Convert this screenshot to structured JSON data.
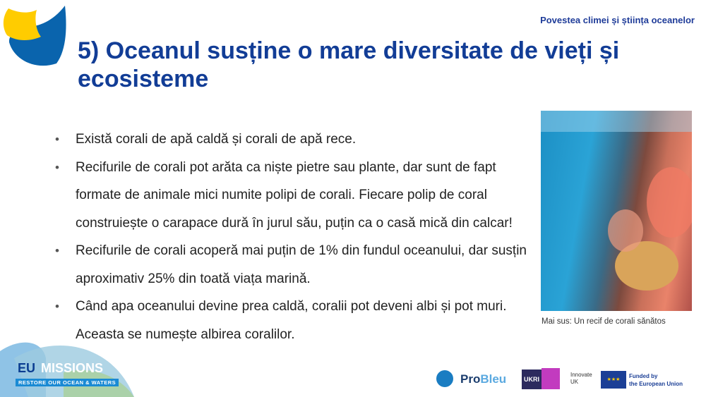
{
  "header": {
    "top_label": "Povestea climei și știința oceanelor",
    "title": "5) Oceanul susține o mare diversitate de vieți și ecosisteme"
  },
  "bullets": [
    "Există corali de apă caldă și corali de apă rece.",
    "Recifurile de corali pot arăta ca niște pietre sau plante, dar sunt de fapt formate de animale mici numite polipi de corali. Fiecare polip de coral construiește o carapace dură în jurul său, puțin ca o casă mică din calcar!",
    "Recifurile de corali acoperă mai puțin de 1% din fundul oceanului, dar susțin aproximativ 25% din toată viața marină.",
    "Când apa oceanului devine prea caldă, coralii pot deveni albi și pot muri. Aceasta se numește albirea coralilor."
  ],
  "image": {
    "caption": "Mai sus: Un recif de corali sănătos"
  },
  "footer": {
    "eu_missions": {
      "name_a": "EU",
      "name_b": "MISSIONS",
      "tagline": "RESTORE OUR OCEAN & WATERS"
    },
    "probleu": {
      "a": "Pro",
      "b": "Bleu"
    },
    "ukri": {
      "mark": "UKRI",
      "label1": "Innovate",
      "label2": "UK"
    },
    "eu": {
      "line1": "Funded by",
      "line2": "the European Union"
    }
  },
  "colors": {
    "title": "#123d96",
    "yellow": "#ffcc00",
    "blue": "#0a64ad"
  }
}
